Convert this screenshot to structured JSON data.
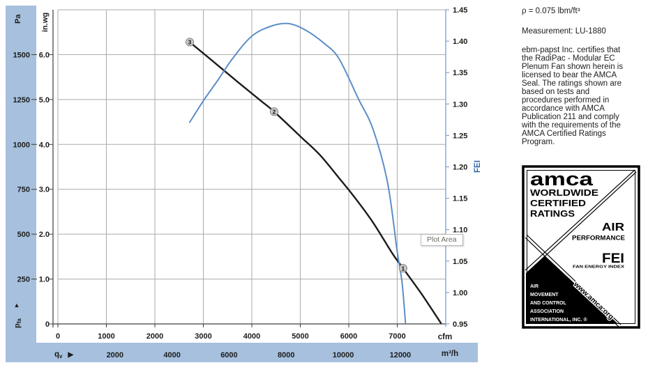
{
  "chart_data": {
    "type": "line",
    "title": "",
    "x_axis": {
      "primary_unit": "cfm",
      "secondary_unit": "m³/h",
      "quantity_base": "q",
      "quantity_sub": "v",
      "arrow": "▶",
      "primary_ticks": [
        0,
        1000,
        2000,
        3000,
        4000,
        5000,
        6000,
        7000
      ],
      "secondary_ticks": [
        2000,
        4000,
        6000,
        8000,
        10000,
        12000
      ],
      "secondary_to_primary_factor": 0.58858,
      "range": [
        0,
        8000
      ]
    },
    "y_left_axis": {
      "outer_unit": "Pa",
      "inner_unit": "in.wg",
      "quantity_base": "p",
      "quantity_sub": "fa",
      "arrow": "▲",
      "inner_ticks": [
        0,
        1,
        2,
        3,
        4,
        5,
        6
      ],
      "outer_ticks": [
        250,
        500,
        750,
        1000,
        1250,
        1500
      ],
      "outer_ticks_at_inner": [
        1,
        2,
        3,
        4,
        5,
        6
      ],
      "range_inner": [
        0,
        7
      ]
    },
    "y_right_axis": {
      "label": "FEI",
      "ticks": [
        0.95,
        1.0,
        1.05,
        1.1,
        1.15,
        1.2,
        1.25,
        1.3,
        1.35,
        1.4,
        1.45
      ],
      "range": [
        0.95,
        1.45
      ]
    },
    "series": [
      {
        "name": "fan-pressure-curve",
        "color": "#1b1b1b",
        "width": 2.4,
        "y_axis": "left",
        "points": [
          [
            2720,
            6.28
          ],
          [
            3200,
            5.85
          ],
          [
            3700,
            5.4
          ],
          [
            4200,
            4.96
          ],
          [
            4460,
            4.73
          ],
          [
            5000,
            4.18
          ],
          [
            5400,
            3.77
          ],
          [
            5800,
            3.25
          ],
          [
            6100,
            2.85
          ],
          [
            6500,
            2.26
          ],
          [
            6900,
            1.57
          ],
          [
            7120,
            1.24
          ],
          [
            7500,
            0.67
          ],
          [
            7900,
            0.02
          ]
        ]
      },
      {
        "name": "fei-curve",
        "color": "#5b8ec7",
        "width": 2,
        "y_axis": "right",
        "points": [
          [
            2720,
            1.271
          ],
          [
            3000,
            1.305
          ],
          [
            3300,
            1.338
          ],
          [
            3600,
            1.372
          ],
          [
            4000,
            1.408
          ],
          [
            4400,
            1.424
          ],
          [
            4750,
            1.428
          ],
          [
            5100,
            1.418
          ],
          [
            5500,
            1.396
          ],
          [
            5800,
            1.372
          ],
          [
            6200,
            1.308
          ],
          [
            6500,
            1.26
          ],
          [
            6800,
            1.175
          ],
          [
            7000,
            1.065
          ],
          [
            7100,
            1.015
          ],
          [
            7170,
            0.952
          ]
        ]
      }
    ],
    "operating_points": [
      {
        "label": "3",
        "cfm": 2720,
        "inwg": 6.28
      },
      {
        "label": "2",
        "cfm": 4460,
        "inwg": 4.73
      },
      {
        "label": "1",
        "cfm": 7120,
        "inwg": 1.24
      }
    ],
    "tooltip": "Plot Area",
    "legend_position": "none",
    "grid": true
  },
  "side_panel": {
    "density": "ρ = 0.075 lbm/ft³",
    "measurement": "Measurement: LU-1880",
    "certification": "ebm-papst Inc. certifies that\nthe RadiPac - Modular EC\nPlenum Fan shown herein is\nlicensed to bear the AMCA\nSeal. The ratings shown are\nbased on tests and\nprocedures performed in\naccordance with AMCA\nPublication 211 and comply\nwith the requirements of the\nAMCA Certified Ratings\nProgram."
  },
  "amca_seal": {
    "brand": "amca",
    "line1": "WORLDWIDE",
    "line2": "CERTIFIED",
    "line3": "RATINGS",
    "right1": "AIR",
    "right2": "PERFORMANCE",
    "fei": "FEI",
    "fei_sub": "FAN ENERGY INDEX",
    "triangle_lines": [
      "AIR",
      "MOVEMENT",
      "AND CONTROL",
      "ASSOCIATION",
      "INTERNATIONAL, INC. ®"
    ],
    "diagonal_url": "www.amca.org"
  },
  "colors": {
    "band": "#a6c0dd",
    "grid": "#aaaaaa",
    "axis_dark": "#3d3d3d",
    "blue_axis": "#7da7d2",
    "fei_title": "#3668a6",
    "text": "#1c1c1c",
    "marker_fill": "#c8c8c8",
    "marker_stroke": "#858585"
  }
}
